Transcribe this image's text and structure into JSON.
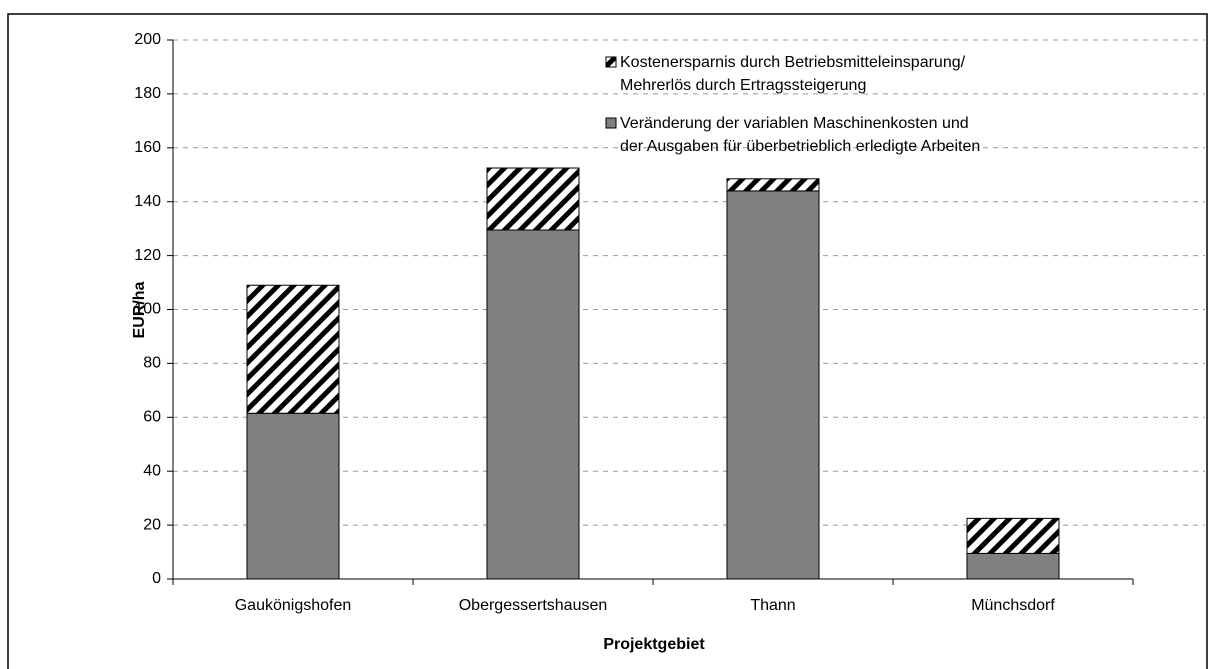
{
  "chart_data": {
    "type": "stacked-bar",
    "categories": [
      "Gaukönigshofen",
      "Obergessertshausen",
      "Thann",
      "Münchsdorf"
    ],
    "series": [
      {
        "name": "Veränderung der variablen Maschinenkosten und\nder Ausgaben für überbetrieblich erledigte Arbeiten",
        "color": "#808080",
        "pattern": "solid",
        "values": [
          61.5,
          129.5,
          144,
          9.5
        ]
      },
      {
        "name": "Kostenersparnis durch Betriebsmitteleinsparung/\nMehrerlös durch Ertragssteigerung",
        "color": "#000000",
        "pattern": "diagonal-hatch",
        "values": [
          47.5,
          23,
          4.5,
          13
        ]
      }
    ],
    "ylabel": "EUR/ha",
    "xlabel": "Projektgebiet",
    "ylim": [
      0,
      200
    ],
    "yticks": [
      0,
      20,
      40,
      60,
      80,
      100,
      120,
      140,
      160,
      180,
      200
    ],
    "grid": true,
    "legend": "top-right"
  }
}
